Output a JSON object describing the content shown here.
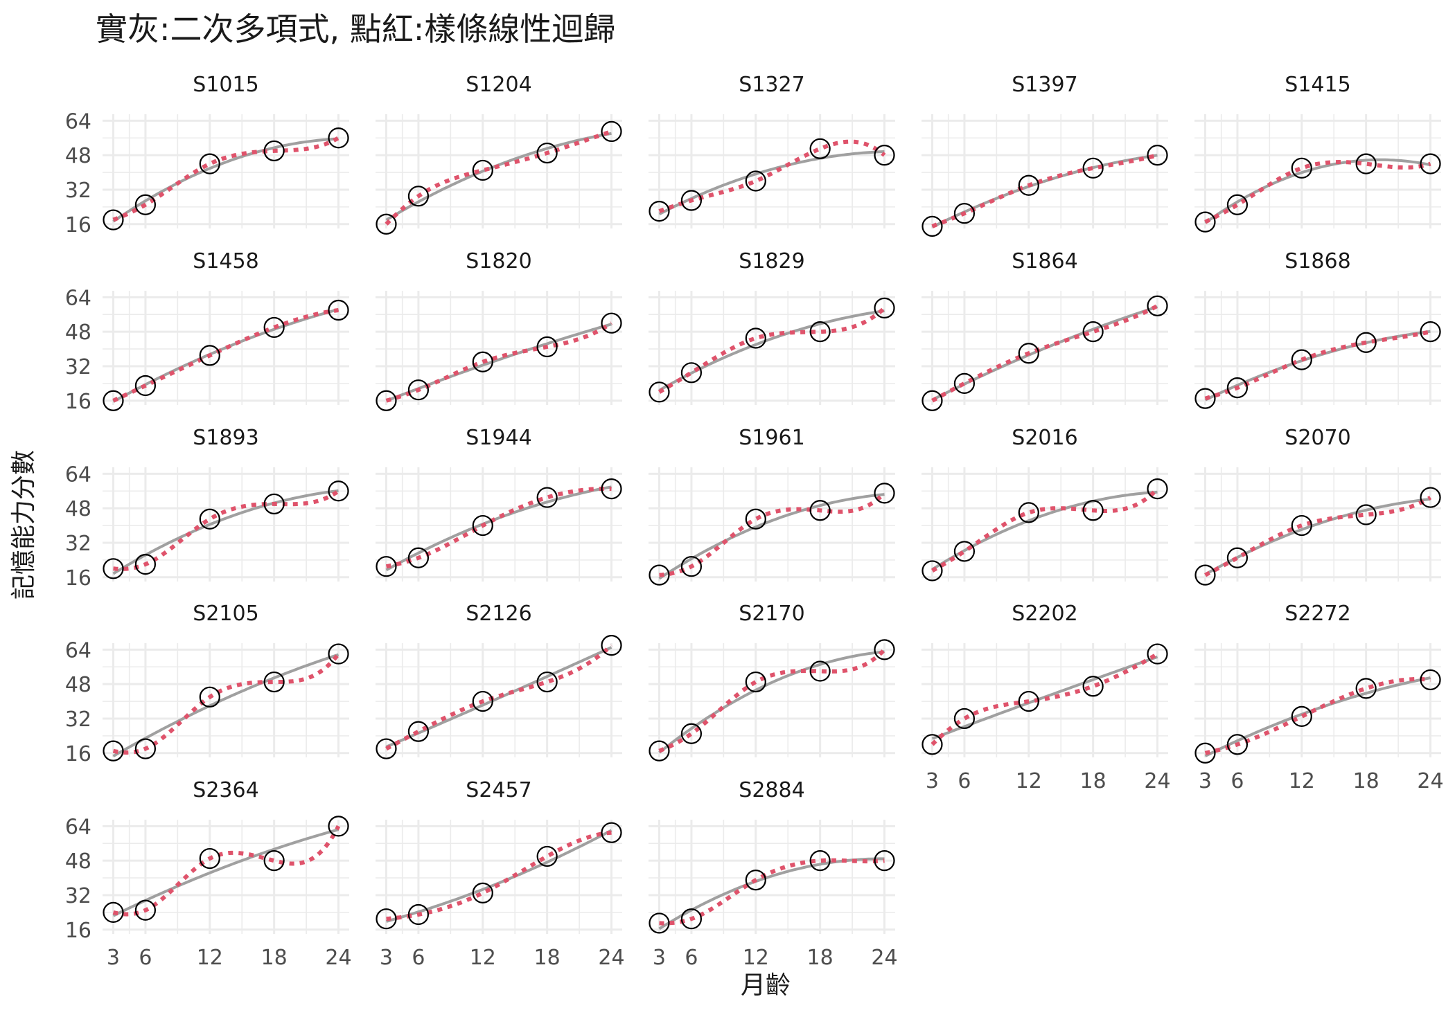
{
  "chart_data": {
    "type": "scatter",
    "title": "實灰:二次多項式, 點紅:樣條線性迴歸",
    "xlabel": "月齡",
    "ylabel": "記憶能力分數",
    "x": [
      3,
      6,
      12,
      18,
      24
    ],
    "xticks": [
      "3",
      "6",
      "12",
      "18",
      "24"
    ],
    "yticks": [
      "16",
      "32",
      "48",
      "64"
    ],
    "xlim": [
      2,
      25
    ],
    "ylim": [
      14,
      67
    ],
    "grid": true,
    "legend": "none",
    "colors": {
      "points": "#000000",
      "quadratic": "#a0a0a0",
      "spline": "#df536b",
      "grid": "#ebebeb"
    },
    "series": [
      {
        "name": "S1015",
        "values": [
          18,
          25,
          44,
          50,
          56
        ]
      },
      {
        "name": "S1204",
        "values": [
          16,
          29,
          41,
          49,
          59
        ]
      },
      {
        "name": "S1327",
        "values": [
          22,
          27,
          36,
          51,
          48
        ]
      },
      {
        "name": "S1397",
        "values": [
          15,
          21,
          34,
          42,
          48
        ]
      },
      {
        "name": "S1415",
        "values": [
          17,
          25,
          42,
          44,
          44
        ]
      },
      {
        "name": "S1458",
        "values": [
          16,
          23,
          37,
          50,
          58
        ]
      },
      {
        "name": "S1820",
        "values": [
          16,
          21,
          34,
          41,
          52
        ]
      },
      {
        "name": "S1829",
        "values": [
          20,
          29,
          45,
          48,
          59
        ]
      },
      {
        "name": "S1864",
        "values": [
          16,
          24,
          38,
          48,
          60
        ]
      },
      {
        "name": "S1868",
        "values": [
          17,
          22,
          35,
          43,
          48
        ]
      },
      {
        "name": "S1893",
        "values": [
          20,
          22,
          43,
          50,
          56
        ]
      },
      {
        "name": "S1944",
        "values": [
          21,
          25,
          40,
          53,
          57
        ]
      },
      {
        "name": "S1961",
        "values": [
          17,
          21,
          43,
          47,
          55
        ]
      },
      {
        "name": "S2016",
        "values": [
          19,
          28,
          46,
          47,
          57
        ]
      },
      {
        "name": "S2070",
        "values": [
          17,
          25,
          40,
          45,
          53
        ]
      },
      {
        "name": "S2105",
        "values": [
          17,
          18,
          42,
          49,
          62
        ]
      },
      {
        "name": "S2126",
        "values": [
          18,
          26,
          40,
          49,
          66
        ]
      },
      {
        "name": "S2170",
        "values": [
          17,
          25,
          49,
          54,
          64
        ]
      },
      {
        "name": "S2202",
        "values": [
          20,
          32,
          40,
          47,
          62
        ]
      },
      {
        "name": "S2272",
        "values": [
          16,
          20,
          33,
          46,
          50
        ]
      },
      {
        "name": "S2364",
        "values": [
          24,
          25,
          49,
          48,
          64
        ]
      },
      {
        "name": "S2457",
        "values": [
          21,
          23,
          33,
          50,
          61
        ]
      },
      {
        "name": "S2884",
        "values": [
          19,
          21,
          39,
          48,
          48
        ]
      }
    ]
  }
}
